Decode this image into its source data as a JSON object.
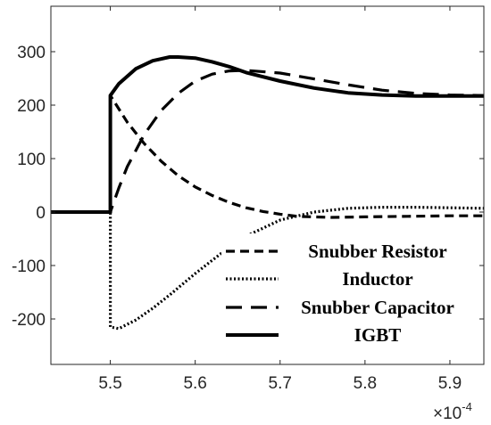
{
  "chart_data": {
    "type": "line",
    "title": "",
    "xlabel": "",
    "ylabel": "",
    "x_multiplier": {
      "base": "10",
      "exponent": "-4",
      "times": "×"
    },
    "xlim": [
      5.43,
      5.94
    ],
    "ylim": [
      -285,
      385
    ],
    "x_ticks": [
      5.5,
      5.6,
      5.7,
      5.8,
      5.9
    ],
    "x_tick_labels": [
      "5.5",
      "5.6",
      "5.7",
      "5.8",
      "5.9"
    ],
    "y_ticks": [
      -200,
      -100,
      0,
      100,
      200,
      300
    ],
    "y_tick_labels": [
      "-200",
      "-100",
      "0",
      "100",
      "200",
      "300"
    ],
    "grid": false,
    "legend_position": "bottom-right",
    "series": [
      {
        "name": "Snubber Resistor",
        "style": "dashed",
        "x": [
          5.43,
          5.5,
          5.5,
          5.52,
          5.54,
          5.56,
          5.58,
          5.6,
          5.62,
          5.64,
          5.66,
          5.68,
          5.7,
          5.72,
          5.76,
          5.8,
          5.85,
          5.9,
          5.94
        ],
        "y": [
          0,
          0,
          218,
          168,
          128,
          95,
          68,
          47,
          31,
          18,
          8,
          1,
          -4,
          -8,
          -10,
          -9,
          -8,
          -7,
          -7
        ]
      },
      {
        "name": "Inductor",
        "style": "dotted",
        "x": [
          5.43,
          5.5,
          5.5,
          5.51,
          5.53,
          5.55,
          5.57,
          5.6,
          5.63,
          5.66,
          5.7,
          5.74,
          5.78,
          5.82,
          5.86,
          5.9,
          5.94
        ],
        "y": [
          0,
          0,
          -215,
          -218,
          -202,
          -180,
          -155,
          -115,
          -78,
          -45,
          -15,
          0,
          7,
          9,
          9,
          8,
          7
        ]
      },
      {
        "name": "Snubber Capacitor",
        "style": "long-dashed",
        "x": [
          5.43,
          5.5,
          5.51,
          5.52,
          5.54,
          5.56,
          5.58,
          5.6,
          5.62,
          5.64,
          5.66,
          5.7,
          5.74,
          5.78,
          5.82,
          5.86,
          5.9,
          5.94
        ],
        "y": [
          0,
          0,
          45,
          85,
          145,
          190,
          222,
          245,
          258,
          264,
          265,
          260,
          249,
          238,
          228,
          222,
          219,
          218
        ]
      },
      {
        "name": "IGBT",
        "style": "solid",
        "x": [
          5.43,
          5.5,
          5.5,
          5.51,
          5.53,
          5.55,
          5.57,
          5.58,
          5.6,
          5.62,
          5.64,
          5.66,
          5.7,
          5.74,
          5.78,
          5.82,
          5.86,
          5.9,
          5.94
        ],
        "y": [
          0,
          0,
          218,
          240,
          268,
          283,
          290,
          290,
          288,
          281,
          272,
          261,
          245,
          232,
          223,
          219,
          217,
          217,
          217
        ]
      }
    ]
  }
}
